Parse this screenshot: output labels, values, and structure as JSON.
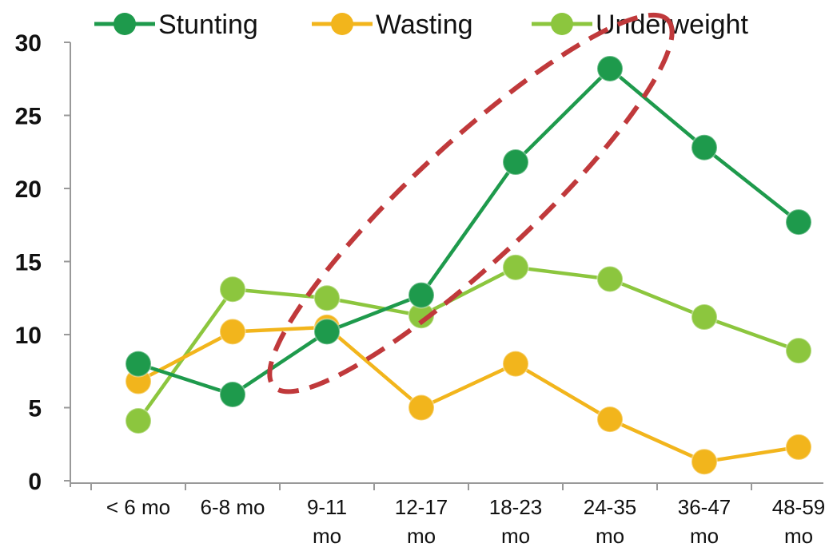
{
  "chart_data": {
    "type": "line",
    "categories": [
      "< 6 mo",
      "6-8 mo",
      "9-11 mo",
      "12-17 mo",
      "18-23 mo",
      "24-35 mo",
      "36-47 mo",
      "48-59 mo"
    ],
    "category_lines": [
      [
        "< 6 mo"
      ],
      [
        "6-8 mo"
      ],
      [
        "9-11",
        "mo"
      ],
      [
        "12-17",
        "mo"
      ],
      [
        "18-23",
        "mo"
      ],
      [
        "24-35",
        "mo"
      ],
      [
        "36-47",
        "mo"
      ],
      [
        "48-59",
        "mo"
      ]
    ],
    "series": [
      {
        "name": "Stunting",
        "color": "#1e9a4c",
        "values": [
          8.0,
          5.9,
          10.2,
          12.7,
          21.8,
          28.2,
          22.8,
          17.7
        ]
      },
      {
        "name": "Wasting",
        "color": "#f2b51c",
        "values": [
          6.8,
          10.2,
          10.5,
          5.0,
          8.0,
          4.2,
          1.3,
          2.3
        ]
      },
      {
        "name": "Underweight",
        "color": "#8cc63e",
        "values": [
          4.1,
          13.1,
          12.5,
          11.3,
          14.6,
          13.8,
          11.2,
          8.9
        ]
      }
    ],
    "yticks": [
      0,
      5,
      10,
      15,
      20,
      25,
      30
    ],
    "ylim": [
      0,
      30
    ],
    "grid": false,
    "legend_position": "top",
    "annotation": "dashed ellipse highlighting 9-11 mo to 24-35 mo stunting increase",
    "annotation_color": "#c0393b"
  }
}
